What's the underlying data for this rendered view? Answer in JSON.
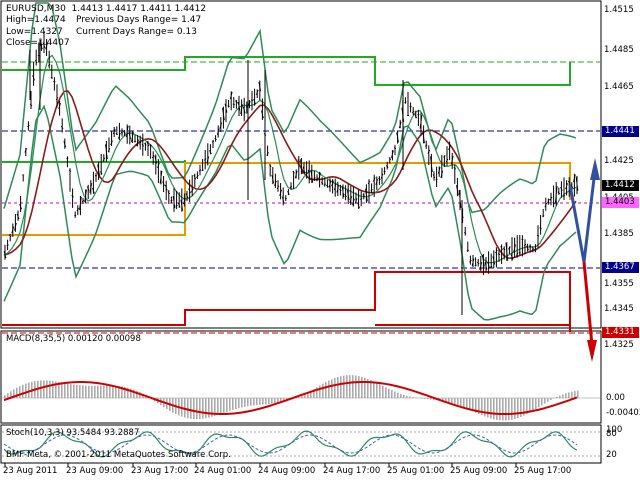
{
  "header": {
    "symbol_line": "EURUSD,M30  1.4413 1.4417 1.4411 1.4412",
    "high": "High=1.4474",
    "prev_range": "Previous Days Range= 1.47",
    "low": "Low=1.4327",
    "curr_range": "Current Days Range= 0.13",
    "close": "Close=1.4407"
  },
  "price_axis": [
    "1.4515",
    "1.4485",
    "1.4465",
    "1.4425",
    "1.4405",
    "1.4385",
    "1.4355",
    "1.4345",
    "1.4325"
  ],
  "price_tags": {
    "p1": "1.4441",
    "p2": "1.4412",
    "p3": "1.4403",
    "p4": "1.4367",
    "p5": "1.4331"
  },
  "macd": {
    "label": "MACD(8,35,5) 0.00120 0.00098",
    "axis_top": "0.00",
    "axis_bottom": "-0.00403"
  },
  "stoch": {
    "label": "Stoch(10,3,3) 93.5484 93.2887",
    "axis_top": "80",
    "axis_bottom": "20",
    "axis_max": "100"
  },
  "footer": "BMF-Meta, © 2001-2011 MetaQuotes Software Corp.",
  "time_axis": [
    "23 Aug 2011",
    "23 Aug 09:00",
    "23 Aug 17:00",
    "24 Aug 01:00",
    "24 Aug 09:00",
    "24 Aug 17:00",
    "25 Aug 01:00",
    "25 Aug 09:00",
    "25 Aug 17:00"
  ],
  "colors": {
    "bands": "#2e8b57",
    "ma": "#8b1a1a",
    "resist": "#22aa22",
    "support": "#cc0000",
    "pivot": "#e69a00",
    "forecast_blue": "#3050a0",
    "forecast_red": "#cc0000"
  }
}
